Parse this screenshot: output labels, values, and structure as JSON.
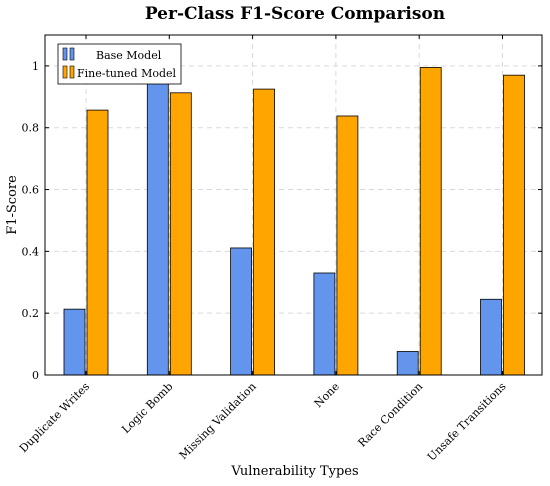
{
  "chart_data": {
    "type": "bar",
    "title": "Per-Class F1-Score Comparison",
    "xlabel": "Vulnerability Types",
    "ylabel": "F1-Score",
    "ylim": [
      0,
      1.1
    ],
    "yticks": [
      0,
      0.2,
      0.4,
      0.6,
      0.8,
      1
    ],
    "grid": true,
    "legend_position": "top-left",
    "categories": [
      "Duplicate Writes",
      "Logic Bomb",
      "Missing Validation",
      "None",
      "Race Condition",
      "Unsafe Transitions"
    ],
    "series": [
      {
        "name": "Base Model",
        "color": "#6495ED",
        "values": [
          0.213,
          0.96,
          0.411,
          0.33,
          0.076,
          0.245
        ]
      },
      {
        "name": "Fine-tuned Model",
        "color": "#FFA500",
        "values": [
          0.857,
          0.913,
          0.925,
          0.838,
          0.995,
          0.97
        ]
      }
    ]
  }
}
